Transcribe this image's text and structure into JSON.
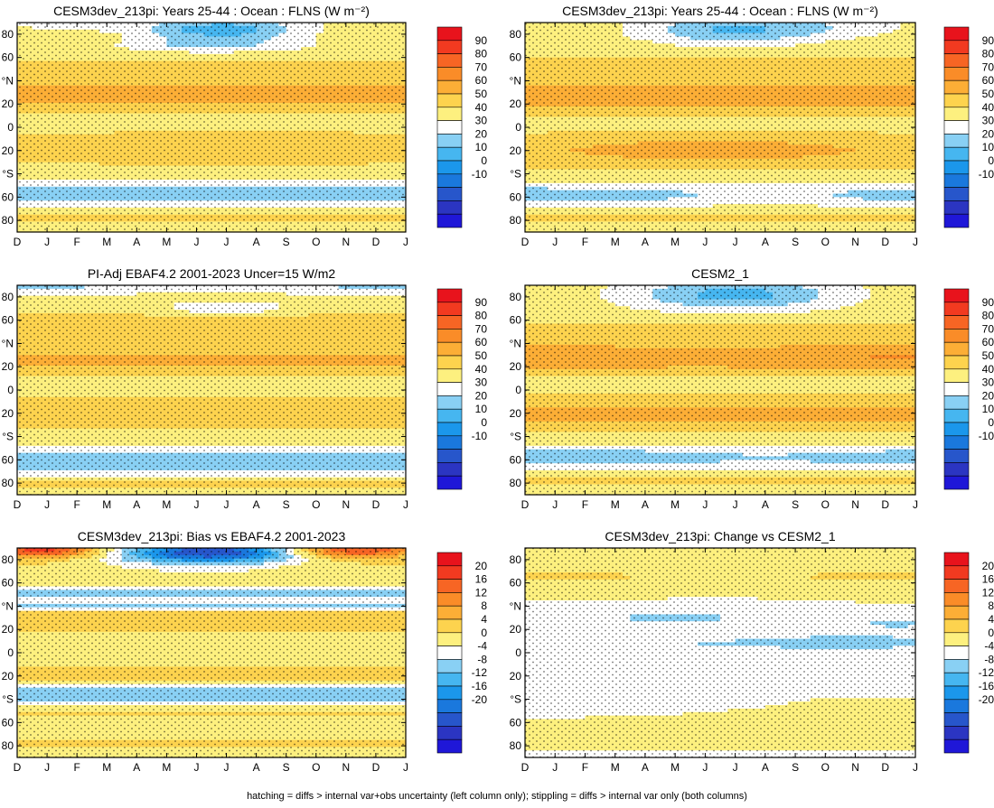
{
  "footnote": "hatching = diffs > internal var+obs uncertainty (left column only); stippling = diffs > internal var only (both columns)",
  "chart_data": [
    {
      "type": "heatmap",
      "title": "CESM3dev_213pi: Years 25-44 : Ocean : FLNS (W m⁻²)",
      "x_ticks": [
        "D",
        "J",
        "F",
        "M",
        "A",
        "M",
        "J",
        "J",
        "A",
        "S",
        "O",
        "N",
        "D",
        "J"
      ],
      "y_ticks": [
        "80",
        "60",
        "°N",
        "20",
        "0",
        "20",
        "°S",
        "60",
        "80"
      ],
      "y_tick_values": [
        80,
        60,
        40,
        20,
        0,
        -20,
        -40,
        -60,
        -80
      ],
      "colorbar": {
        "levels": [
          90,
          80,
          70,
          60,
          50,
          40,
          30,
          20,
          10,
          0,
          -10
        ],
        "kind": "abs"
      },
      "field": "p1"
    },
    {
      "type": "heatmap",
      "title": "CESM3dev_213pi: Years 25-44 : Ocean : FLNS (W m⁻²)",
      "x_ticks": [
        "D",
        "J",
        "F",
        "M",
        "A",
        "M",
        "J",
        "J",
        "A",
        "S",
        "O",
        "N",
        "D",
        "J"
      ],
      "y_ticks": [
        "80",
        "60",
        "°N",
        "20",
        "0",
        "20",
        "°S",
        "60",
        "80"
      ],
      "y_tick_values": [
        80,
        60,
        40,
        20,
        0,
        -20,
        -40,
        -60,
        -80
      ],
      "colorbar": {
        "levels": [
          90,
          80,
          70,
          60,
          50,
          40,
          30,
          20,
          10,
          0,
          -10
        ],
        "kind": "abs"
      },
      "field": "p2"
    },
    {
      "type": "heatmap",
      "title": "PI-Adj EBAF4.2 2001-2023 Uncer=15 W/m2",
      "x_ticks": [
        "D",
        "J",
        "F",
        "M",
        "A",
        "M",
        "J",
        "J",
        "A",
        "S",
        "O",
        "N",
        "D",
        "J"
      ],
      "y_ticks": [
        "80",
        "60",
        "°N",
        "20",
        "0",
        "20",
        "°S",
        "60",
        "80"
      ],
      "y_tick_values": [
        80,
        60,
        40,
        20,
        0,
        -20,
        -40,
        -60,
        -80
      ],
      "colorbar": {
        "levels": [
          90,
          80,
          70,
          60,
          50,
          40,
          30,
          20,
          10,
          0,
          -10
        ],
        "kind": "abs"
      },
      "field": "p3"
    },
    {
      "type": "heatmap",
      "title": "CESM2_1",
      "x_ticks": [
        "D",
        "J",
        "F",
        "M",
        "A",
        "M",
        "J",
        "J",
        "A",
        "S",
        "O",
        "N",
        "D",
        "J"
      ],
      "y_ticks": [
        "80",
        "60",
        "°N",
        "20",
        "0",
        "20",
        "°S",
        "60",
        "80"
      ],
      "y_tick_values": [
        80,
        60,
        40,
        20,
        0,
        -20,
        -40,
        -60,
        -80
      ],
      "colorbar": {
        "levels": [
          90,
          80,
          70,
          60,
          50,
          40,
          30,
          20,
          10,
          0,
          -10
        ],
        "kind": "abs"
      },
      "field": "p4"
    },
    {
      "type": "heatmap",
      "title": "CESM3dev_213pi: Bias vs EBAF4.2 2001-2023",
      "x_ticks": [
        "D",
        "J",
        "F",
        "M",
        "A",
        "M",
        "J",
        "J",
        "A",
        "S",
        "O",
        "N",
        "D",
        "J"
      ],
      "y_ticks": [
        "80",
        "60",
        "°N",
        "20",
        "0",
        "20",
        "°S",
        "60",
        "80"
      ],
      "y_tick_values": [
        80,
        60,
        40,
        20,
        0,
        -20,
        -40,
        -60,
        -80
      ],
      "colorbar": {
        "levels": [
          20,
          16,
          12,
          8,
          4,
          0,
          -4,
          -8,
          -12,
          -16,
          -20
        ],
        "kind": "diff"
      },
      "field": "p5"
    },
    {
      "type": "heatmap",
      "title": "CESM3dev_213pi: Change vs CESM2_1",
      "x_ticks": [
        "D",
        "J",
        "F",
        "M",
        "A",
        "M",
        "J",
        "J",
        "A",
        "S",
        "O",
        "N",
        "D",
        "J"
      ],
      "y_ticks": [
        "80",
        "60",
        "°N",
        "20",
        "0",
        "20",
        "°S",
        "60",
        "80"
      ],
      "y_tick_values": [
        80,
        60,
        40,
        20,
        0,
        -20,
        -40,
        -60,
        -80
      ],
      "colorbar": {
        "levels": [
          20,
          16,
          12,
          8,
          4,
          0,
          -4,
          -8,
          -12,
          -16,
          -20
        ],
        "kind": "diff"
      },
      "field": "p6"
    }
  ],
  "colors_abs": [
    "#e8131c",
    "#f23a20",
    "#f76524",
    "#fa8c28",
    "#fcae36",
    "#fdd34e",
    "#fdf07f",
    "#ffffff",
    "#89d0f4",
    "#46b6f0",
    "#1b97eb",
    "#1a78dd",
    "#2756cb",
    "#2b35c2",
    "#1f17d8"
  ],
  "colors_diff": [
    "#e8131c",
    "#f23a20",
    "#f76524",
    "#fa8c28",
    "#fcae36",
    "#fdd34e",
    "#fdf07f",
    "#ffffff",
    "#89d0f4",
    "#46b6f0",
    "#1b97eb",
    "#1a78dd",
    "#2756cb",
    "#2b35c2",
    "#1f17d8"
  ]
}
